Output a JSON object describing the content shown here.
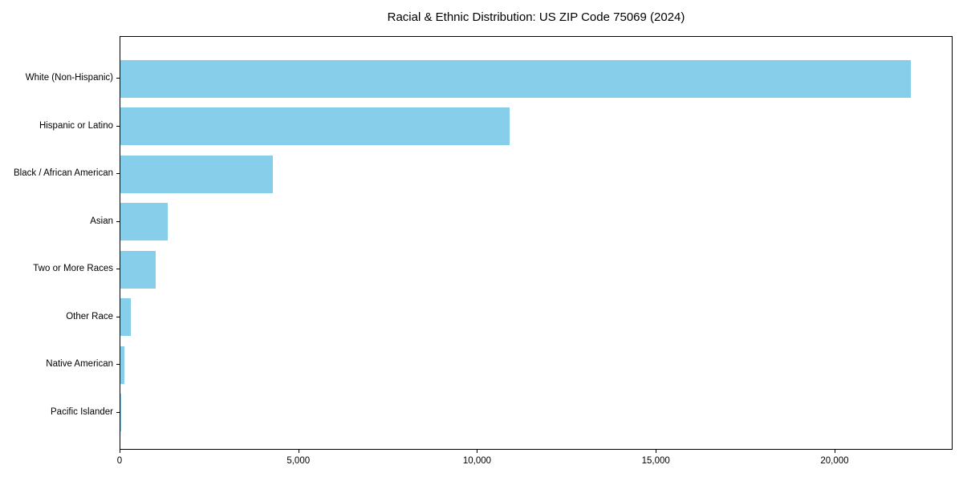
{
  "chart_data": {
    "type": "bar",
    "orientation": "horizontal",
    "title": "Racial & Ethnic Distribution: US ZIP Code 75069 (2024)",
    "categories": [
      "White (Non-Hispanic)",
      "Hispanic or Latino",
      "Black / African American",
      "Asian",
      "Two or More Races",
      "Other Race",
      "Native American",
      "Pacific Islander"
    ],
    "values": [
      22150,
      10900,
      4280,
      1330,
      1000,
      300,
      110,
      10
    ],
    "xlabel": "",
    "ylabel": "",
    "xlim": [
      0,
      23300
    ],
    "x_ticks": [
      0,
      5000,
      10000,
      15000,
      20000
    ],
    "x_tick_labels": [
      "0",
      "5,000",
      "10,000",
      "15,000",
      "20,000"
    ],
    "bar_color": "#87CEEB",
    "grid": false,
    "legend": null,
    "plot_border_color": "#000000",
    "background_color": "#ffffff"
  }
}
